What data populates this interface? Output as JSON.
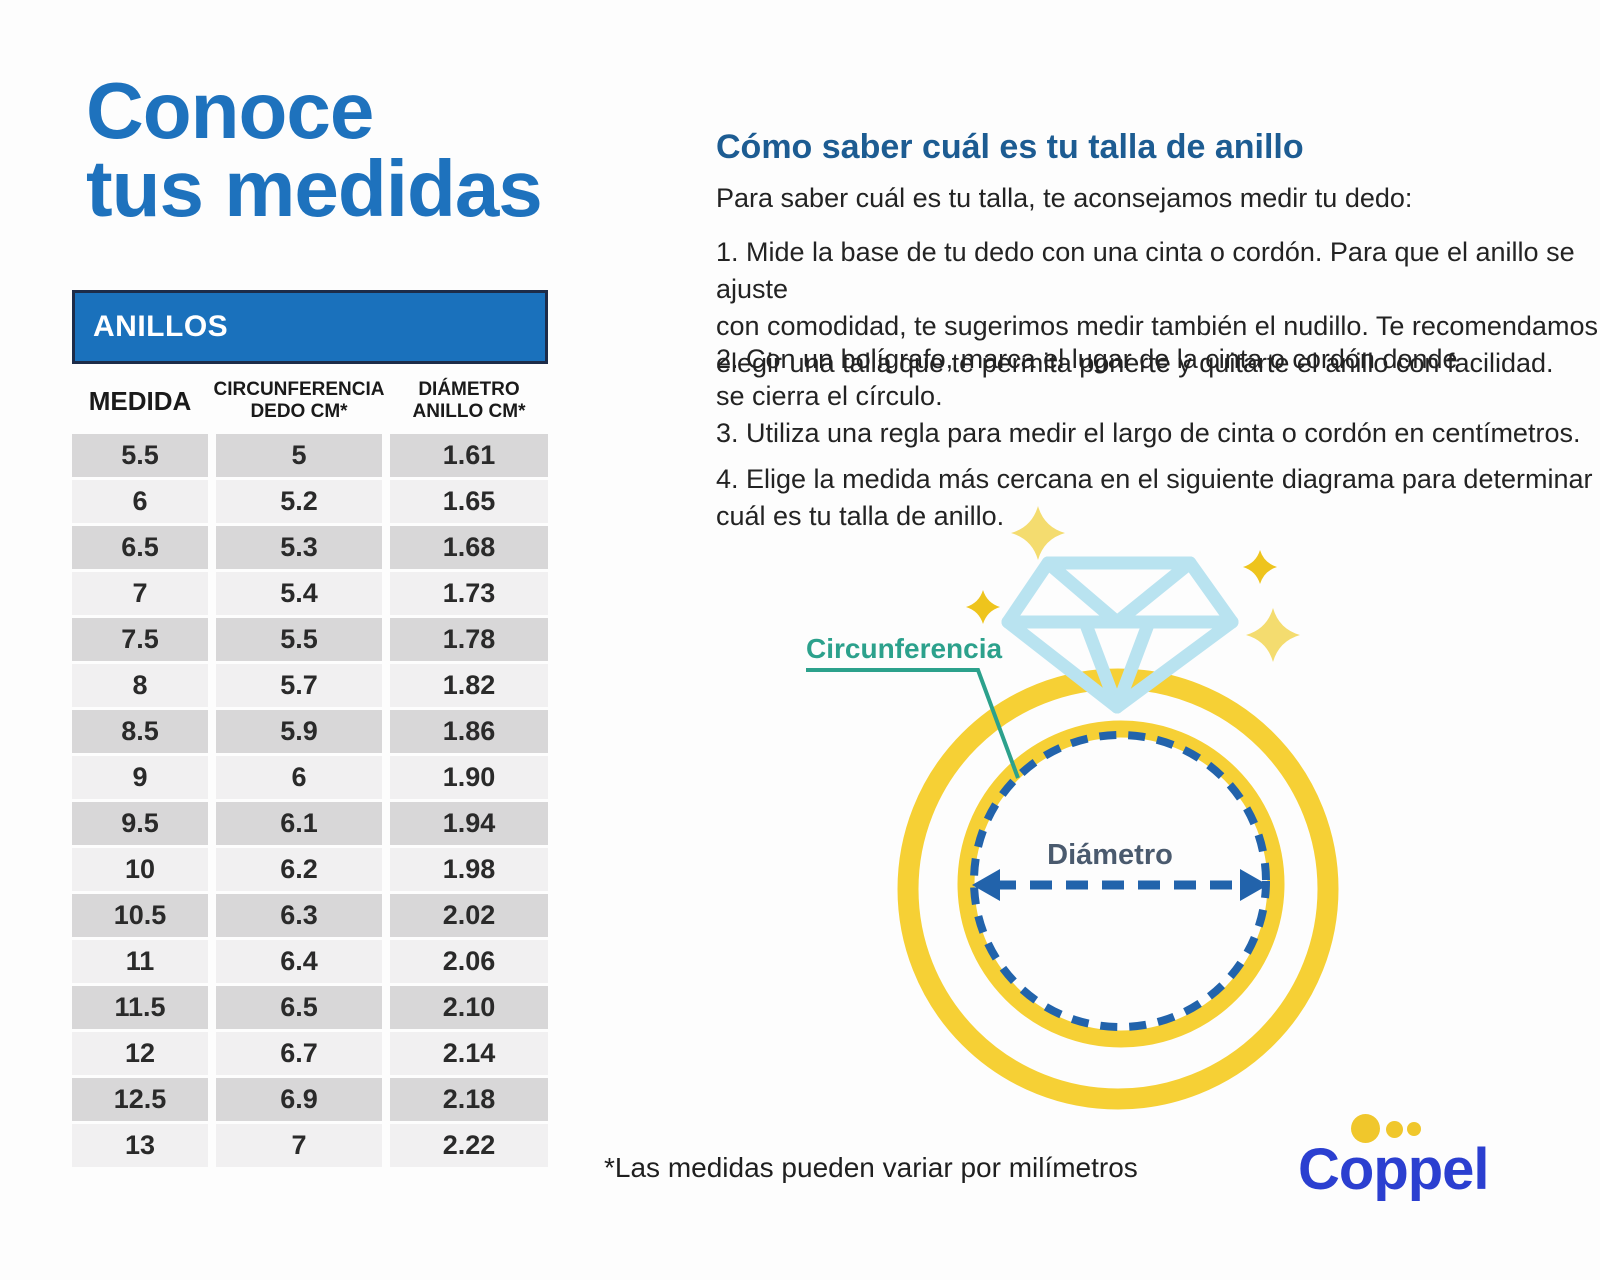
{
  "colors": {
    "title_blue": "#1e72bd",
    "heading_blue": "#1d5c92",
    "table_header_bg": "#1a71bc",
    "row_dark": "#d8d7d8",
    "row_light": "#f1f0f1",
    "ring_gold": "#f6d035",
    "sparkle_gold_dark": "#eec41d",
    "sparkle_gold_light": "#f4dc6f",
    "diamond_blue": "#b9e3f0",
    "dashed_blue": "#2263ab",
    "teal": "#2ca18c",
    "coppel_blue": "#2b3fd0",
    "coppel_yellow": "#f0c72c",
    "diameter_text": "#4a5a6e"
  },
  "left": {
    "title": [
      "Conoce",
      "tus medidas"
    ],
    "table": {
      "header": "ANILLOS",
      "columns": [
        [
          "MEDIDA",
          ""
        ],
        [
          "CIRCUNFERENCIA",
          "DEDO CM*"
        ],
        [
          "DIÁMETRO",
          "ANILLO CM*"
        ]
      ],
      "rows": [
        [
          "5.5",
          "5",
          "1.61"
        ],
        [
          "6",
          "5.2",
          "1.65"
        ],
        [
          "6.5",
          "5.3",
          "1.68"
        ],
        [
          "7",
          "5.4",
          "1.73"
        ],
        [
          "7.5",
          "5.5",
          "1.78"
        ],
        [
          "8",
          "5.7",
          "1.82"
        ],
        [
          "8.5",
          "5.9",
          "1.86"
        ],
        [
          "9",
          "6",
          "1.90"
        ],
        [
          "9.5",
          "6.1",
          "1.94"
        ],
        [
          "10",
          "6.2",
          "1.98"
        ],
        [
          "10.5",
          "6.3",
          "2.02"
        ],
        [
          "11",
          "6.4",
          "2.06"
        ],
        [
          "11.5",
          "6.5",
          "2.10"
        ],
        [
          "12",
          "6.7",
          "2.14"
        ],
        [
          "12.5",
          "6.9",
          "2.18"
        ],
        [
          "13",
          "7",
          "2.22"
        ]
      ]
    }
  },
  "right": {
    "heading": "Cómo saber cuál es tu talla de anillo",
    "intro": "Para saber cuál es tu talla, te aconsejamos medir tu dedo:",
    "steps": [
      [
        "1. Mide la base de tu dedo con una cinta o cordón. Para que el anillo se ajuste",
        "con comodidad, te sugerimos medir también el nudillo. Te recomendamos",
        "elegir una talla que te permita ponerte y quitarte el anillo con facilidad."
      ],
      [
        "2. Con un bolígrafo, marca el lugar de la cinta o cordón donde",
        "se cierra el círculo."
      ],
      [
        "3. Utiliza una regla para medir el largo de cinta o cordón en centímetros."
      ],
      [
        "4. Elige la medida más cercana en el siguiente diagrama para determinar",
        "cuál es tu talla de anillo."
      ]
    ],
    "footnote": "*Las medidas pueden variar por milímetros"
  },
  "diagram": {
    "circumference_label": "Circunferencia",
    "diameter_label": "Diámetro"
  },
  "brand": {
    "name": "Coppel"
  }
}
